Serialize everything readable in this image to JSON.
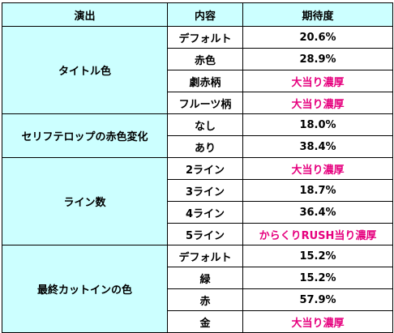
{
  "table": {
    "headers": [
      "演出",
      "内容",
      "期待度"
    ],
    "highlight_color": "#e6007e",
    "header_bg": "#ccffff",
    "category_bg": "#ccffff",
    "groups": [
      {
        "category": "タイトル色",
        "rows": [
          {
            "content": "デフォルト",
            "value": "20.6%",
            "highlight": false
          },
          {
            "content": "赤色",
            "value": "28.9%",
            "highlight": false
          },
          {
            "content": "劇赤柄",
            "value": "大当り濃厚",
            "highlight": true
          },
          {
            "content": "フルーツ柄",
            "value": "大当り濃厚",
            "highlight": true
          }
        ]
      },
      {
        "category": "セリフテロップの赤色変化",
        "rows": [
          {
            "content": "なし",
            "value": "18.0%",
            "highlight": false
          },
          {
            "content": "あり",
            "value": "38.4%",
            "highlight": false
          }
        ]
      },
      {
        "category": "ライン数",
        "rows": [
          {
            "content": "2ライン",
            "value": "大当り濃厚",
            "highlight": true
          },
          {
            "content": "3ライン",
            "value": "18.7%",
            "highlight": false
          },
          {
            "content": "4ライン",
            "value": "36.4%",
            "highlight": false
          },
          {
            "content": "5ライン",
            "value": "からくりRUSH当り濃厚",
            "highlight": true
          }
        ]
      },
      {
        "category": "最終カットインの色",
        "rows": [
          {
            "content": "デフォルト",
            "value": "15.2%",
            "highlight": false
          },
          {
            "content": "緑",
            "value": "15.2%",
            "highlight": false
          },
          {
            "content": "赤",
            "value": "57.9%",
            "highlight": false
          },
          {
            "content": "金",
            "value": "大当り濃厚",
            "highlight": true
          }
        ]
      }
    ]
  }
}
